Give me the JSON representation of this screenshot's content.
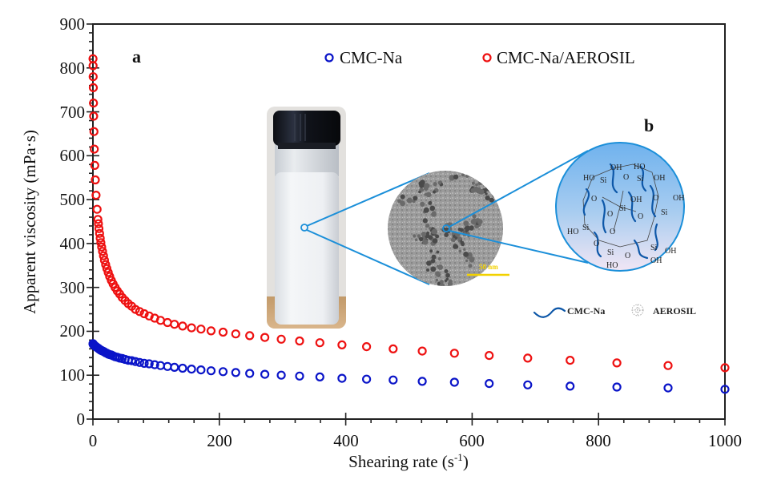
{
  "colors": {
    "cmc_na": "#0a14c8",
    "cmc_na_aerosil": "#ee1111",
    "connector": "#1b8fd9",
    "axis": "#222222"
  },
  "chart_data": {
    "type": "scatter",
    "title": "",
    "xlabel": "Shearing rate (s-1)",
    "xlabel_base": "Shearing rate (s",
    "xlabel_sup": "-1",
    "xlabel_close": ")",
    "ylabel": "Apparent viscosity (mPa·s)",
    "xlim": [
      0,
      1000
    ],
    "ylim": [
      0,
      900
    ],
    "xticks": [
      "0",
      "200",
      "400",
      "600",
      "800",
      "1000"
    ],
    "yticks": [
      "0",
      "100",
      "200",
      "300",
      "400",
      "500",
      "600",
      "700",
      "800",
      "900"
    ],
    "grid": false,
    "legend_position": "top",
    "series": [
      {
        "name": "CMC-Na",
        "color": "#0a14c8",
        "marker": "open-circle",
        "x": [
          0.1,
          0.25,
          0.4,
          0.6,
          0.9,
          1.2,
          1.6,
          2.2,
          2.9,
          3.8,
          5.0,
          6.6,
          7.9,
          8.7,
          9.5,
          10.5,
          11.5,
          12.6,
          13.8,
          15.2,
          16.7,
          18.3,
          20.1,
          22.0,
          24.2,
          26.5,
          29.1,
          32.0,
          35.1,
          38.5,
          42.3,
          46.4,
          50.9,
          55.9,
          61.3,
          67.3,
          73.9,
          81.1,
          89.0,
          97.7,
          107,
          118,
          129,
          142,
          156,
          171,
          187,
          206,
          226,
          248,
          272,
          298,
          327,
          359,
          394,
          433,
          475,
          521,
          572,
          627,
          688,
          755,
          829,
          910,
          1000
        ],
        "y": [
          172,
          171,
          171,
          170,
          170,
          169,
          169,
          168,
          167,
          166,
          165,
          163,
          162,
          161,
          160,
          159,
          158,
          157,
          156,
          155,
          154,
          153,
          151,
          150,
          148,
          147,
          146,
          144,
          142,
          141,
          139,
          138,
          136,
          134,
          133,
          131,
          129,
          127,
          126,
          124,
          122,
          120,
          118,
          116,
          114,
          112,
          110,
          108,
          106,
          104,
          102,
          100,
          98,
          96,
          93,
          91,
          89,
          86,
          84,
          81,
          78,
          75,
          73,
          71,
          68
        ]
      },
      {
        "name": "CMC-Na/AEROSIL",
        "color": "#ee1111",
        "marker": "open-circle",
        "x": [
          0.1,
          0.25,
          0.4,
          0.6,
          0.9,
          1.2,
          1.6,
          2.2,
          2.9,
          3.8,
          5.0,
          6.6,
          7.9,
          8.7,
          9.5,
          10.5,
          11.5,
          12.6,
          13.8,
          15.2,
          16.7,
          18.3,
          20.1,
          22.0,
          24.2,
          26.5,
          29.1,
          32.0,
          35.1,
          38.5,
          42.3,
          46.4,
          50.9,
          55.9,
          61.3,
          67.3,
          73.9,
          81.1,
          89.0,
          97.7,
          107,
          118,
          129,
          142,
          156,
          171,
          187,
          206,
          226,
          248,
          272,
          298,
          327,
          359,
          394,
          433,
          475,
          521,
          572,
          627,
          688,
          755,
          829,
          910,
          1000
        ],
        "y": [
          821,
          805,
          780,
          755,
          720,
          690,
          655,
          615,
          578,
          545,
          510,
          478,
          455,
          445,
          434,
          423,
          412,
          402,
          392,
          382,
          372,
          362,
          352,
          343,
          334,
          325,
          316,
          308,
          300,
          292,
          285,
          277,
          270,
          263,
          257,
          250,
          245,
          240,
          235,
          230,
          225,
          220,
          216,
          212,
          208,
          205,
          201,
          198,
          194,
          190,
          186,
          182,
          178,
          174,
          169,
          165,
          160,
          155,
          150,
          145,
          139,
          134,
          128,
          122,
          117
        ]
      }
    ]
  },
  "annotations": {
    "panel_a": "a",
    "panel_b": "b",
    "scale_bar": "50 nm",
    "bottom_legend_cmc": "CMC-Na",
    "bottom_legend_aerosil": "AEROSIL",
    "chem_labels": [
      "OH",
      "HO",
      "HO",
      "Si",
      "O",
      "Si",
      "OH",
      "O",
      "OH",
      "O",
      "Si",
      "OH",
      "Si",
      "O",
      "HO",
      "Si",
      "O",
      "O",
      "O",
      "O",
      "Si",
      "Si",
      "OH",
      "OH",
      "HO"
    ]
  },
  "insets": {
    "vial_photo": "vial-photo",
    "tem_image": "tem-micrograph",
    "schematic": "cmc-aerosil-network-schematic"
  }
}
